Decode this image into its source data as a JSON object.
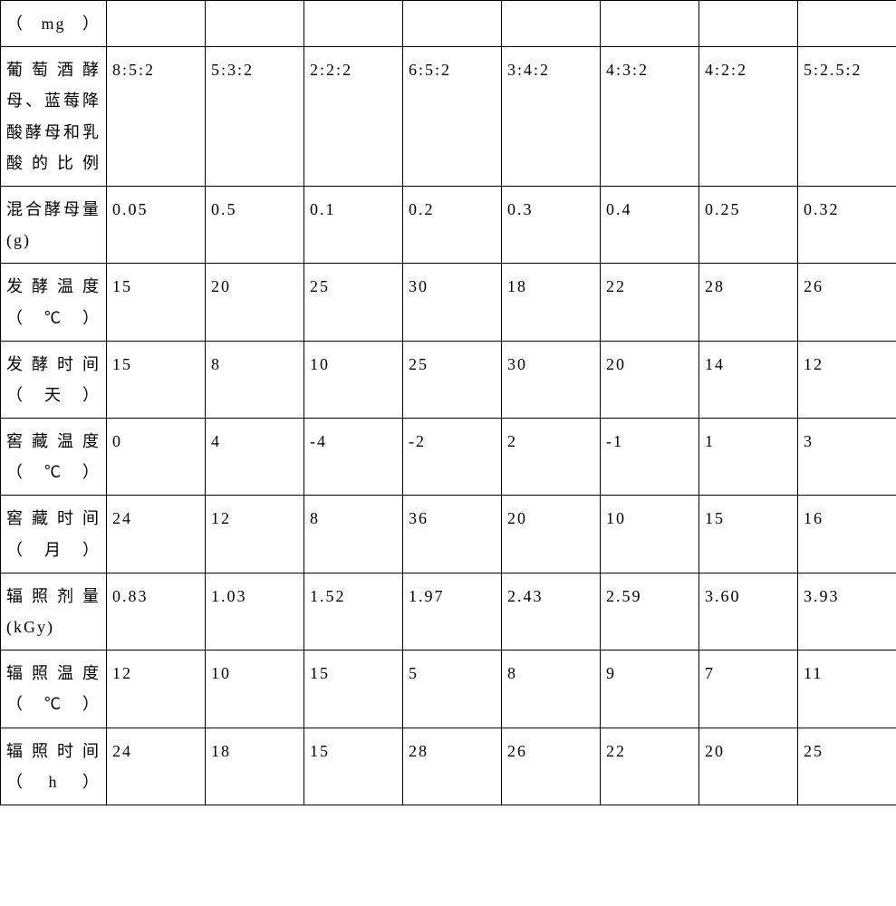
{
  "table": {
    "columns_count": 9,
    "first_col_width": 117,
    "other_col_width": 109,
    "font_size": 18,
    "line_height": 1.9,
    "border_color": "#000000",
    "background_color": "#ffffff",
    "text_color": "#000000",
    "rows": [
      {
        "header": "（mg）",
        "cells": [
          "",
          "",
          "",
          "",
          "",
          "",
          "",
          ""
        ]
      },
      {
        "header": "葡萄酒酵母、蓝莓降酸酵母和乳酸的比例",
        "cells": [
          "8:5:2",
          "5:3:2",
          "2:2:2",
          "6:5:2",
          "3:4:2",
          "4:3:2",
          "4:2:2",
          "5:2.5:2"
        ]
      },
      {
        "header": "混合酵母量(g)",
        "cells": [
          "0.05",
          "0.5",
          "0.1",
          "0.2",
          "0.3",
          "0.4",
          "0.25",
          "0.32"
        ]
      },
      {
        "header": "发酵温度（℃）",
        "cells": [
          "15",
          "20",
          "25",
          "30",
          "18",
          "22",
          "28",
          "26"
        ]
      },
      {
        "header": "发酵时间（天）",
        "cells": [
          "15",
          "8",
          "10",
          "25",
          "30",
          "20",
          "14",
          "12"
        ]
      },
      {
        "header": "窖藏温度（℃）",
        "cells": [
          "0",
          "4",
          "-4",
          "-2",
          "2",
          "-1",
          "1",
          "3"
        ]
      },
      {
        "header": "窖藏时间（月）",
        "cells": [
          "24",
          "12",
          "8",
          "36",
          "20",
          "10",
          "15",
          "16"
        ]
      },
      {
        "header": "辐照剂量(kGy)",
        "cells": [
          "0.83",
          "1.03",
          "1.52",
          "1.97",
          "2.43",
          "2.59",
          "3.60",
          "3.93"
        ]
      },
      {
        "header": "辐照温度（℃）",
        "cells": [
          "12",
          "10",
          "15",
          "5",
          "8",
          "9",
          "7",
          "11"
        ]
      },
      {
        "header": "辐照时间（h）",
        "cells": [
          "24",
          "18",
          "15",
          "28",
          "26",
          "22",
          "20",
          "25"
        ]
      }
    ]
  }
}
